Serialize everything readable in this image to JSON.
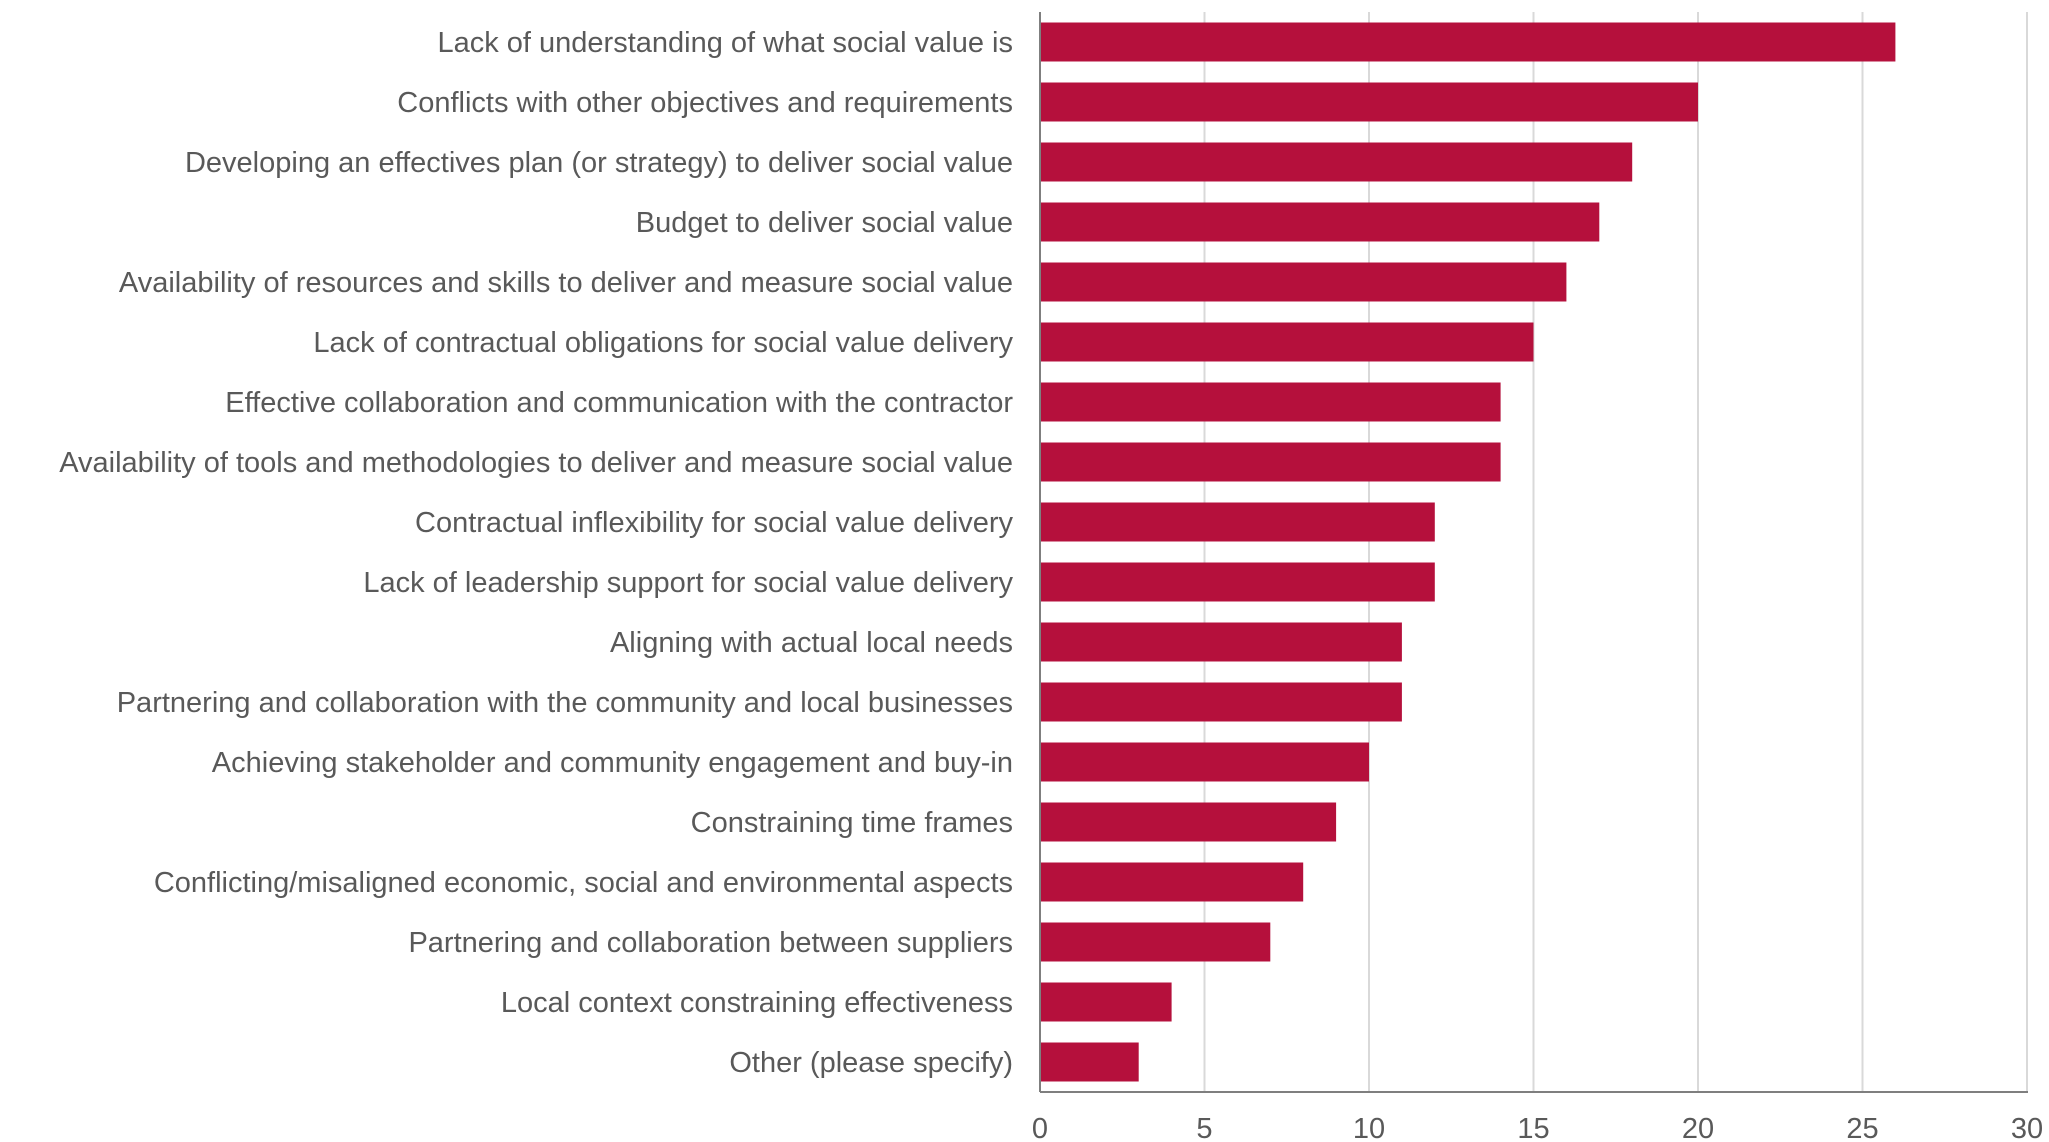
{
  "chart_data": {
    "type": "bar",
    "orientation": "horizontal",
    "title": "",
    "xlabel": "",
    "ylabel": "",
    "xlim": [
      0,
      30
    ],
    "ticks": [
      0,
      5,
      10,
      15,
      20,
      25,
      30
    ],
    "grid": true,
    "bar_color": "#B5103C",
    "categories": [
      "Lack of understanding of what social value is",
      "Conflicts with other objectives and requirements",
      "Developing an effectives plan (or strategy) to deliver social value",
      "Budget to deliver social value",
      "Availability of resources and skills to deliver and measure social value",
      "Lack of contractual obligations for social value delivery",
      "Effective collaboration and communication with the contractor",
      "Availability of tools and methodologies to deliver and measure social value",
      "Contractual inflexibility for social value delivery",
      "Lack of leadership support for social value delivery",
      "Aligning with actual local needs",
      "Partnering and collaboration with the community and local businesses",
      "Achieving stakeholder and community engagement and buy-in",
      "Constraining time frames",
      "Conflicting/misaligned economic, social and environmental aspects",
      "Partnering and collaboration between suppliers",
      "Local context constraining effectiveness",
      "Other (please specify)"
    ],
    "values": [
      26,
      20,
      18,
      17,
      16,
      15,
      14,
      14,
      12,
      12,
      11,
      11,
      10,
      9,
      8,
      7,
      4,
      3
    ]
  }
}
